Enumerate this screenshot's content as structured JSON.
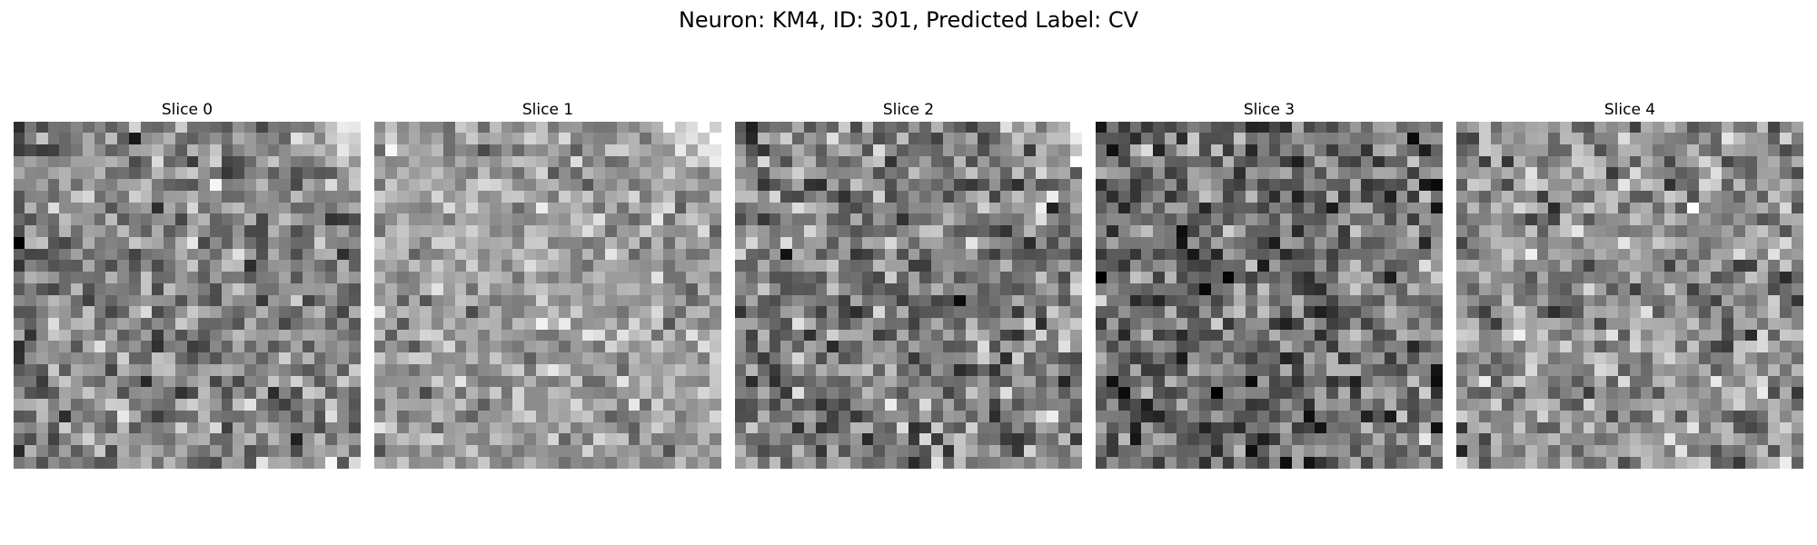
{
  "figure": {
    "title": "Neuron: KM4, ID: 301, Predicted Label: CV"
  },
  "slices": [
    {
      "label": "Slice 0",
      "mean_gray": 0.52,
      "contrast": 0.22,
      "seed": 11,
      "bright_top_right": true,
      "dark_left_edge": true
    },
    {
      "label": "Slice 1",
      "mean_gray": 0.62,
      "contrast": 0.18,
      "seed": 23,
      "bright_top_right": true,
      "dark_left_edge": false
    },
    {
      "label": "Slice 2",
      "mean_gray": 0.5,
      "contrast": 0.24,
      "seed": 37,
      "bright_top_right": true,
      "dark_left_edge": false
    },
    {
      "label": "Slice 3",
      "mean_gray": 0.44,
      "contrast": 0.24,
      "seed": 53,
      "bright_top_right": false,
      "dark_left_edge": false
    },
    {
      "label": "Slice 4",
      "mean_gray": 0.56,
      "contrast": 0.22,
      "seed": 71,
      "bright_top_right": false,
      "dark_left_edge": false
    }
  ],
  "image_grid": 30,
  "colormap": "gray"
}
